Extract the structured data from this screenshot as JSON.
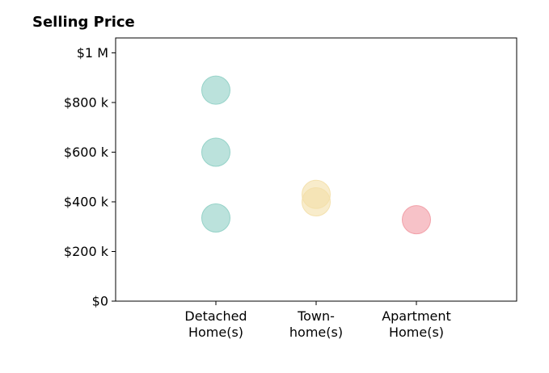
{
  "chart_data": {
    "type": "scatter",
    "title": "Selling Price",
    "xlabel": "",
    "ylabel": "",
    "categories": [
      [
        "Detached",
        "Home(s)"
      ],
      [
        "Town-",
        "home(s)"
      ],
      [
        "Apartment",
        "Home(s)"
      ]
    ],
    "x_range": [
      -1,
      3
    ],
    "ylim": [
      0,
      1060000
    ],
    "y_ticks": [
      {
        "value": 0,
        "label": "$0"
      },
      {
        "value": 200000,
        "label": "$200 k"
      },
      {
        "value": 400000,
        "label": "$400 k"
      },
      {
        "value": 600000,
        "label": "$600 k"
      },
      {
        "value": 800000,
        "label": "$800 k"
      },
      {
        "value": 1000000,
        "label": "$1 M"
      }
    ],
    "grid": false,
    "points": [
      {
        "category": 0,
        "value": 850000,
        "color": "#8ecfc4"
      },
      {
        "category": 0,
        "value": 600000,
        "color": "#8ecfc4"
      },
      {
        "category": 0,
        "value": 335000,
        "color": "#8ecfc4"
      },
      {
        "category": 1,
        "value": 430000,
        "color": "#f3dfa8"
      },
      {
        "category": 1,
        "value": 400000,
        "color": "#f3dfa8"
      },
      {
        "category": 2,
        "value": 328000,
        "color": "#f19aa3"
      }
    ]
  }
}
